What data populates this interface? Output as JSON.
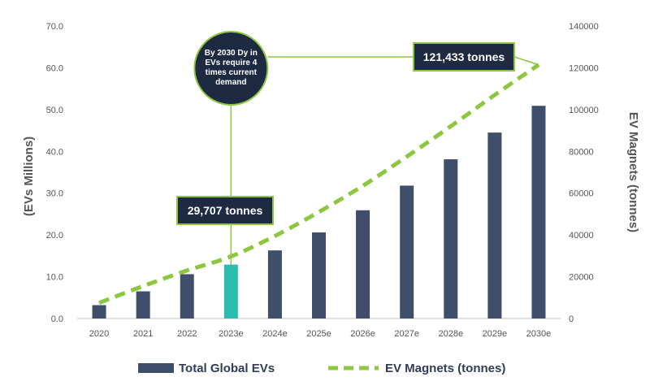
{
  "chart_data": {
    "type": "bar",
    "categories": [
      "2020",
      "2021",
      "2022",
      "2023e",
      "2024e",
      "2025e",
      "2026e",
      "2027e",
      "2028e",
      "2029e",
      "2030e"
    ],
    "ylabel": "(EVs Millions)",
    "y2label": "EV Magnets (tonnes)",
    "ylim": [
      0,
      70
    ],
    "y2lim": [
      0,
      140000
    ],
    "y_ticks": [
      "0.0",
      "10.0",
      "20.0",
      "30.0",
      "40.0",
      "50.0",
      "60.0",
      "70.0"
    ],
    "y2_ticks": [
      "0",
      "20000",
      "40000",
      "60000",
      "80000",
      "100000",
      "120000",
      "140000"
    ],
    "grid": false,
    "legend_position": "bottom",
    "series": [
      {
        "name": "Total Global EVs",
        "type": "bar",
        "axis": "left",
        "color": "#3f4f6b",
        "highlight_category": "2023e",
        "highlight_color": "#2bbdb0",
        "values": [
          3.2,
          6.5,
          10.6,
          12.9,
          16.3,
          20.6,
          25.9,
          31.8,
          38.1,
          44.5,
          50.9
        ]
      },
      {
        "name": "EV Magnets (tonnes)",
        "type": "line",
        "style": "dashed",
        "axis": "right",
        "color": "#8dc63f",
        "values": [
          7500,
          15500,
          23000,
          29707,
          39500,
          51000,
          63500,
          77500,
          92000,
          107000,
          121433
        ]
      }
    ],
    "annotations": [
      {
        "text": "29,707 tonnes",
        "category": "2023e"
      },
      {
        "text": "121,433 tonnes",
        "category": "2030e"
      },
      {
        "lines": [
          "By 2030 Dy in",
          "EVs require 4",
          "times current",
          "demand"
        ],
        "category": "2023e"
      }
    ]
  }
}
